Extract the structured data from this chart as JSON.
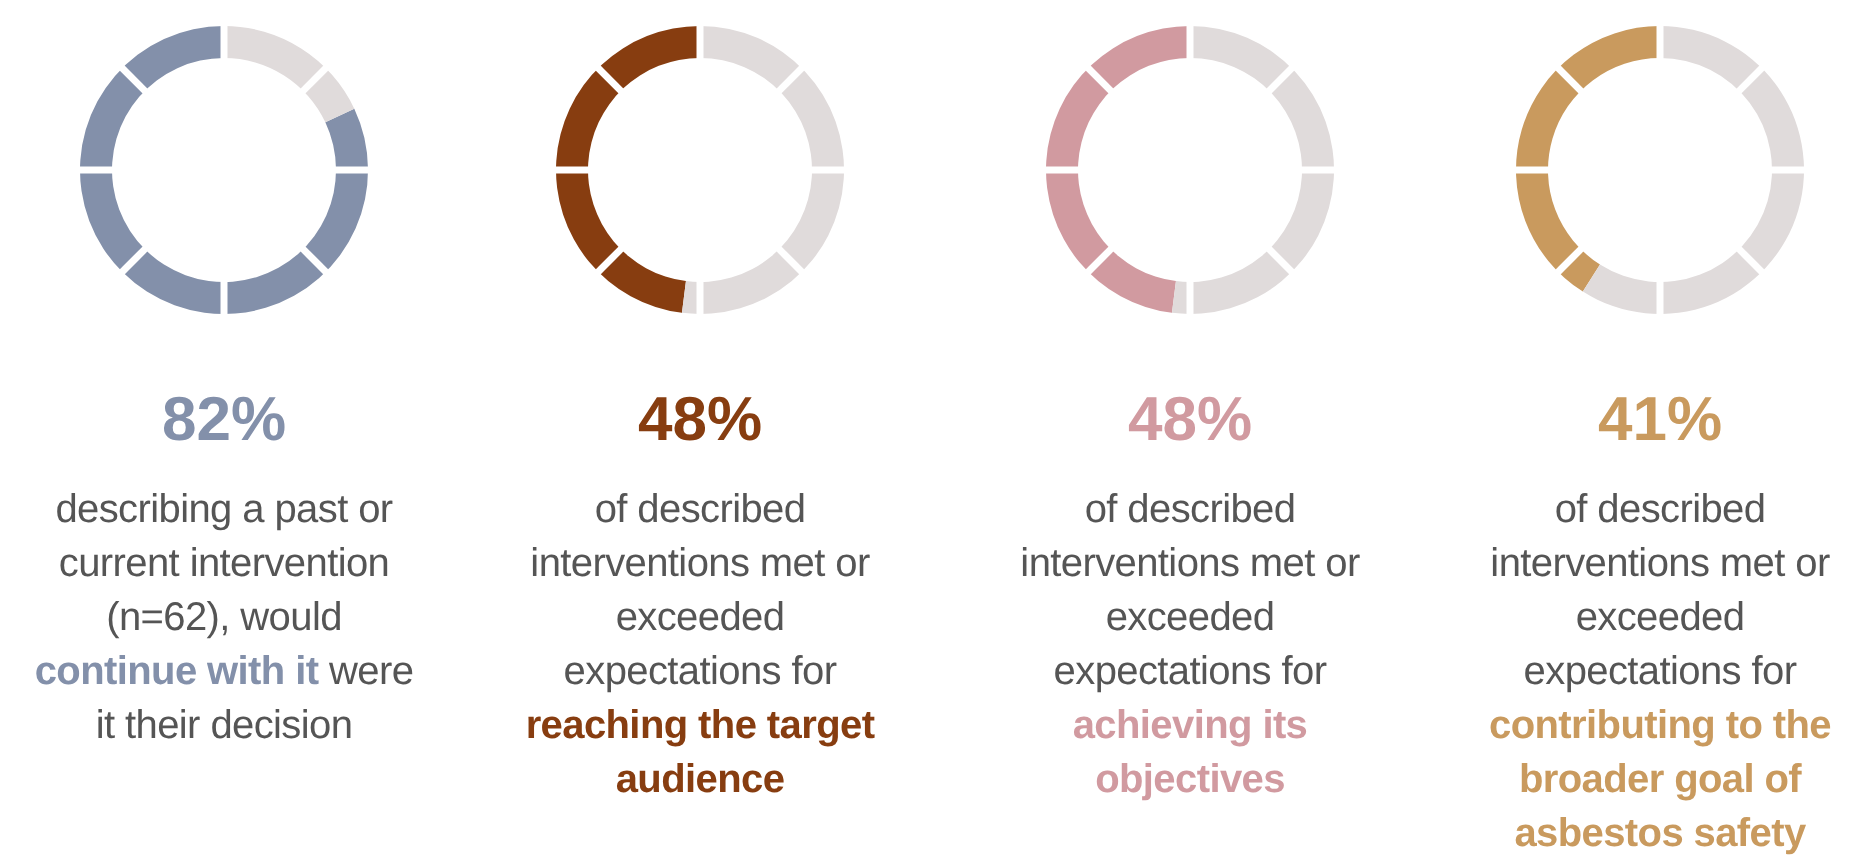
{
  "chart_data": [
    {
      "type": "donut",
      "categories": [
        null,
        null
      ],
      "values": [
        82,
        18
      ],
      "colors": [
        "#8390aa",
        "#e0dbdb"
      ],
      "title": "82%",
      "annotations": [
        "describing a past or current intervention (n=62), would ",
        "continue with it",
        " were it their decision"
      ]
    },
    {
      "type": "donut",
      "categories": [
        null,
        null
      ],
      "values": [
        48,
        52
      ],
      "colors": [
        "#873d10",
        "#e0dbdb"
      ],
      "title": "48%",
      "annotations": [
        "of described interventions met or exceeded expectations for ",
        "reaching the target audience"
      ]
    },
    {
      "type": "donut",
      "categories": [
        null,
        null
      ],
      "values": [
        48,
        52
      ],
      "colors": [
        "#d19aa0",
        "#e0dbdb"
      ],
      "title": "48%",
      "annotations": [
        "of described interventions met or exceeded expectations for ",
        "achieving its objectives"
      ]
    },
    {
      "type": "donut",
      "categories": [
        null,
        null
      ],
      "values": [
        41,
        59
      ],
      "colors": [
        "#c99a5e",
        "#e0dbdb"
      ],
      "title": "41%",
      "annotations": [
        "of described interventions met or exceeded expectations for ",
        "contributing to the broader goal of asbestos safety"
      ]
    }
  ]
}
